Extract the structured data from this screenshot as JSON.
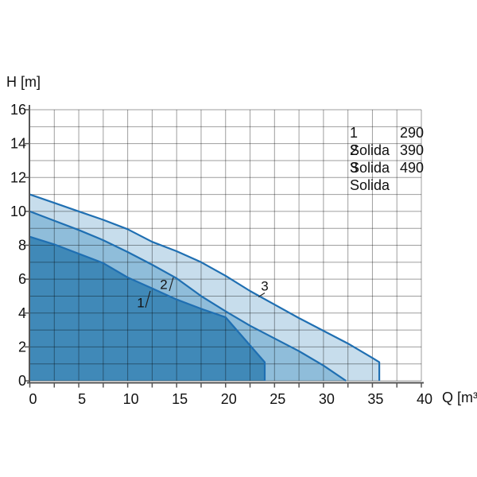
{
  "chart_data": {
    "type": "area",
    "title": "",
    "xlabel": "Q [m³",
    "ylabel": "H [m]",
    "xlim": [
      0,
      40
    ],
    "ylim": [
      0,
      16
    ],
    "x_grid_step": 2.5,
    "y_grid_step": 1,
    "x_tick_step": 2.5,
    "y_tick_step": 2,
    "x_label_step": 5,
    "y_label_step": 2,
    "grid": "on",
    "legend_position": "top-right",
    "x_tick_labels": [
      "0",
      "5",
      "10",
      "15",
      "20",
      "25",
      "30",
      "35",
      "40"
    ],
    "y_tick_labels": [
      "0",
      "2",
      "4",
      "6",
      "8",
      "10",
      "12",
      "14",
      "16"
    ],
    "series": [
      {
        "id": "3",
        "name": "Solida 490",
        "fill": "#c7ddec",
        "points": [
          [
            0,
            11
          ],
          [
            2.5,
            10.5
          ],
          [
            5,
            10.0
          ],
          [
            7.5,
            9.5
          ],
          [
            10,
            8.95
          ],
          [
            12.5,
            8.2
          ],
          [
            15,
            7.65
          ],
          [
            17.5,
            7.0
          ],
          [
            20,
            6.2
          ],
          [
            22.5,
            5.3
          ],
          [
            25,
            4.5
          ],
          [
            27.5,
            3.7
          ],
          [
            30,
            2.95
          ],
          [
            32.5,
            2.2
          ],
          [
            35,
            1.35
          ],
          [
            35.7,
            1.1
          ],
          [
            35.7,
            0
          ]
        ]
      },
      {
        "id": "2",
        "name": "Solida 390",
        "fill": "#8fbdda",
        "points": [
          [
            0,
            10
          ],
          [
            2.5,
            9.45
          ],
          [
            5,
            8.9
          ],
          [
            7.5,
            8.3
          ],
          [
            10,
            7.6
          ],
          [
            12.5,
            6.85
          ],
          [
            15,
            6.05
          ],
          [
            17.5,
            5.0
          ],
          [
            20,
            4.1
          ],
          [
            22.5,
            3.25
          ],
          [
            25,
            2.5
          ],
          [
            27.5,
            1.75
          ],
          [
            30,
            0.9
          ],
          [
            32.3,
            0
          ]
        ]
      },
      {
        "id": "1",
        "name": "Solida 290",
        "fill": "#4089b8",
        "points": [
          [
            0,
            8.5
          ],
          [
            2.5,
            8.05
          ],
          [
            5,
            7.5
          ],
          [
            7.5,
            6.95
          ],
          [
            10,
            6.1
          ],
          [
            12.5,
            5.45
          ],
          [
            15,
            4.8
          ],
          [
            17.5,
            4.25
          ],
          [
            20,
            3.75
          ],
          [
            24,
            1.1
          ],
          [
            24,
            0
          ]
        ]
      }
    ]
  },
  "legend": {
    "items": [
      {
        "label": "1 Solida",
        "value": "290"
      },
      {
        "label": "2 Solida",
        "value": "390"
      },
      {
        "label": "3 Solida",
        "value": "490"
      }
    ]
  },
  "annotations": [
    {
      "text": "1"
    },
    {
      "text": "2"
    },
    {
      "text": "3"
    }
  ],
  "colors": {
    "curve_stroke": "#1f6fb2",
    "grid": "#9c9c9c",
    "axis": "#555555",
    "text": "#111111"
  }
}
